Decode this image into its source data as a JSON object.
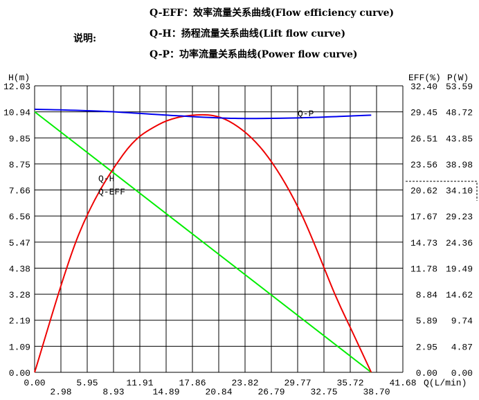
{
  "legend": {
    "caption": "说明:",
    "items": [
      "Q-EFF：效率流量关系曲线(Flow efficiency curve)",
      "Q-H：扬程流量关系曲线(Lift flow curve)",
      "Q-P：功率流量关系曲线(Power flow curve)"
    ]
  },
  "chart_data": {
    "type": "line",
    "xlabel": "Q(L/min)",
    "ylabel_left": "H(m)",
    "ylabel_right1": "EFF(%)",
    "ylabel_right2": "P(W)",
    "xlim": [
      0,
      41.68
    ],
    "ylim_H": [
      0,
      12.03
    ],
    "ylim_EFF": [
      0,
      32.4
    ],
    "ylim_P": [
      0,
      53.59
    ],
    "grid": true,
    "x_ticks": [
      "0.00",
      "2.98",
      "5.95",
      "8.93",
      "11.91",
      "14.89",
      "17.86",
      "20.84",
      "23.82",
      "26.79",
      "29.77",
      "32.75",
      "35.72",
      "38.70",
      "41.68"
    ],
    "h_ticks": [
      "0.00",
      "1.09",
      "2.19",
      "3.28",
      "4.38",
      "5.47",
      "6.56",
      "7.66",
      "8.75",
      "9.85",
      "10.94",
      "12.03"
    ],
    "eff_ticks": [
      "0.00",
      "2.95",
      "5.89",
      "8.84",
      "11.78",
      "14.73",
      "17.67",
      "20.62",
      "23.56",
      "26.51",
      "29.45",
      "32.40"
    ],
    "p_ticks": [
      "0.00",
      "4.87",
      "9.74",
      "14.62",
      "19.49",
      "24.36",
      "29.23",
      "34.10",
      "38.98",
      "43.85",
      "48.72",
      "53.59"
    ],
    "series": [
      {
        "name": "Q-H",
        "axis": "H",
        "color": "#00ee00",
        "x": [
          0,
          38.1
        ],
        "y": [
          10.94,
          0
        ]
      },
      {
        "name": "Q-EFF",
        "axis": "EFF",
        "color": "#ee0000",
        "x": [
          0,
          5,
          10,
          14,
          18.3,
          22,
          26,
          30,
          34,
          36,
          38.1
        ],
        "y": [
          0,
          15.6,
          24.6,
          28.0,
          29.1,
          28.4,
          24.9,
          18.3,
          8.8,
          4.5,
          0
        ]
      },
      {
        "name": "Q-P",
        "axis": "P",
        "color": "#0000ee",
        "x": [
          0,
          8,
          16,
          22.7,
          30,
          35,
          38.1
        ],
        "y": [
          49.2,
          48.8,
          48.0,
          47.5,
          47.6,
          47.9,
          48.1
        ]
      }
    ]
  }
}
